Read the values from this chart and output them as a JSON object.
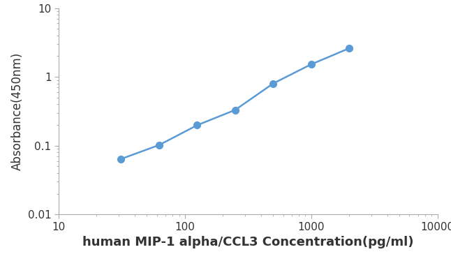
{
  "x": [
    31.25,
    62.5,
    125,
    250,
    500,
    1000,
    2000
  ],
  "y": [
    0.064,
    0.102,
    0.198,
    0.33,
    0.8,
    1.52,
    2.6
  ],
  "line_color": "#5B9BD5",
  "marker_color": "#5B9BD5",
  "marker_size": 7,
  "line_width": 1.8,
  "xlabel": "human MIP-1 alpha/CCL3 Concentration(pg/ml)",
  "ylabel": "Absorbance(450nm)",
  "xlim": [
    10,
    10000
  ],
  "ylim": [
    0.01,
    10
  ],
  "yticks": [
    0.01,
    0.1,
    1,
    10
  ],
  "ytick_labels": [
    "0.01",
    "0.1",
    "1",
    "10"
  ],
  "xticks": [
    10,
    100,
    1000,
    10000
  ],
  "xtick_labels": [
    "10",
    "100",
    "1000",
    "10000"
  ],
  "xlabel_fontsize": 13,
  "ylabel_fontsize": 12,
  "tick_fontsize": 11,
  "background_color": "#ffffff"
}
